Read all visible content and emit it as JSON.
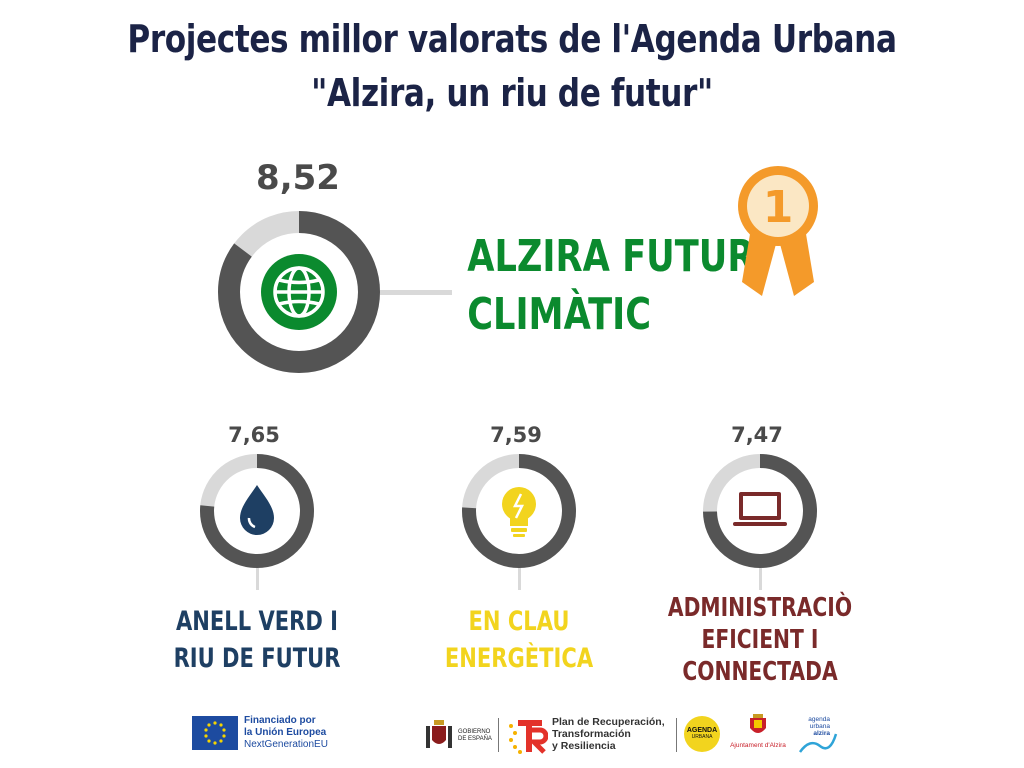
{
  "title": {
    "line1": "Projectes millor valorats de l'Agenda Urbana",
    "line2": "\"Alzira, un riu de futur\""
  },
  "colors": {
    "ring_dark": "#545454",
    "ring_light": "#d9d9d9",
    "green": "#0b8a2e",
    "navy": "#1e3f63",
    "yellow": "#f2d41e",
    "maroon": "#7a2a2a",
    "medal": "#f49a2a"
  },
  "main_project": {
    "score": "8,52",
    "score_value": 8.52,
    "label_line1": "ALZIRA FUTUR",
    "label_line2": "CLIMÀTIC",
    "icon": "globe-icon",
    "rank": "1",
    "rank_icon": "medal-icon"
  },
  "projects": [
    {
      "score": "7,65",
      "score_value": 7.65,
      "icon": "water-drop-icon",
      "label_line1": "ANELL VERD I",
      "label_line2": "RIU DE FUTUR",
      "label_line3": ""
    },
    {
      "score": "7,59",
      "score_value": 7.59,
      "icon": "lightbulb-icon",
      "label_line1": "EN CLAU",
      "label_line2": "ENERGÈTICA",
      "label_line3": ""
    },
    {
      "score": "7,47",
      "score_value": 7.47,
      "icon": "laptop-icon",
      "label_line1": "ADMINISTRACIÒ",
      "label_line2": "EFICIENT I",
      "label_line3": "CONNECTADA"
    }
  ],
  "footer": {
    "eu_line1": "Financiado por",
    "eu_line2": "la Unión Europea",
    "eu_line3": "NextGenerationEU",
    "gov_line1": "GOBIERNO",
    "gov_line2": "DE ESPAÑA",
    "plan_line1": "Plan de Recuperación,",
    "plan_line2": "Transformación",
    "plan_line3": "y Resiliencia",
    "agenda_line1": "AGENDA",
    "agenda_line2": "URBANA",
    "ajuntament": "Ajuntament d'Alzira",
    "au_line1": "agenda",
    "au_line2": "urbana",
    "au_line3": "alzira"
  }
}
